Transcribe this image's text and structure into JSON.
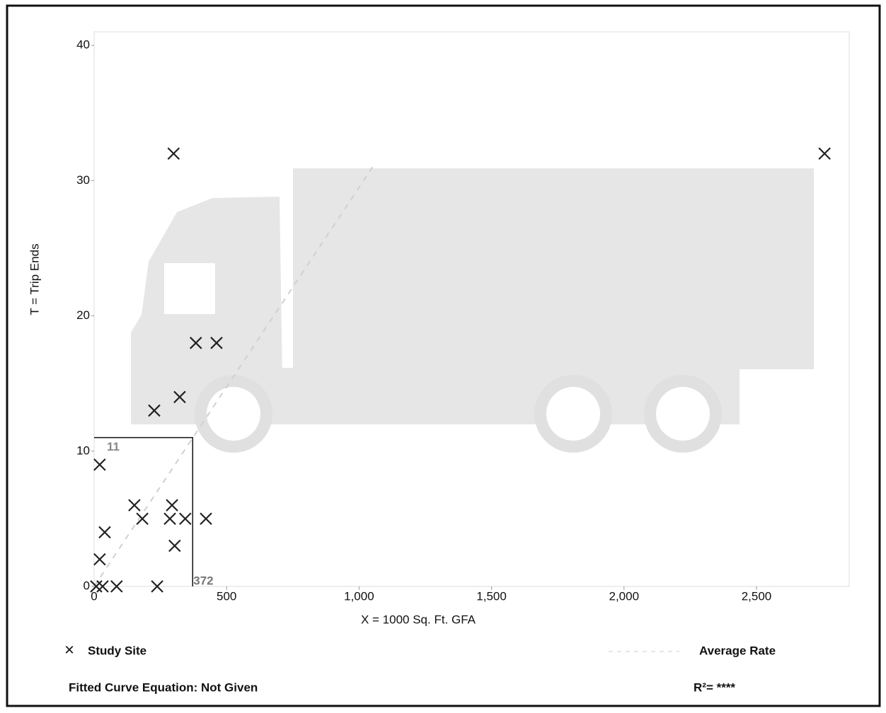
{
  "chart_data": {
    "type": "scatter",
    "x_label": "X = 1000 Sq. Ft. GFA",
    "y_label": "T = Trip Ends",
    "xlim": [
      0,
      2850
    ],
    "ylim": [
      0,
      41
    ],
    "xticks": [
      0,
      500,
      {
        "value": 1000,
        "label": "1,000"
      },
      {
        "value": 1500,
        "label": "1,500"
      },
      {
        "value": 2000,
        "label": "2,000"
      },
      {
        "value": 2500,
        "label": "2,500"
      }
    ],
    "yticks": [
      0,
      10,
      20,
      30,
      40
    ],
    "series": [
      {
        "name": "Study Site",
        "color": "#222222",
        "x": [
          300,
          2757,
          384,
          462,
          323,
          227,
          21,
          152,
          294,
          182,
          286,
          344,
          422,
          40,
          304,
          21,
          8,
          32,
          85,
          238
        ],
        "values": [
          32,
          32,
          18,
          18,
          14,
          13,
          9,
          6,
          6,
          5,
          5,
          5,
          5,
          4,
          3,
          2,
          0,
          0,
          0,
          0
        ]
      }
    ],
    "average_rate_label": "Average Rate",
    "average_rate": 0.0295,
    "range_box": {
      "x": 372,
      "y": 11,
      "x_label": "372",
      "y_label": "11"
    },
    "fitted_curve": "Fitted Curve Equation: Not Given",
    "r_squared": "R²= ****"
  }
}
